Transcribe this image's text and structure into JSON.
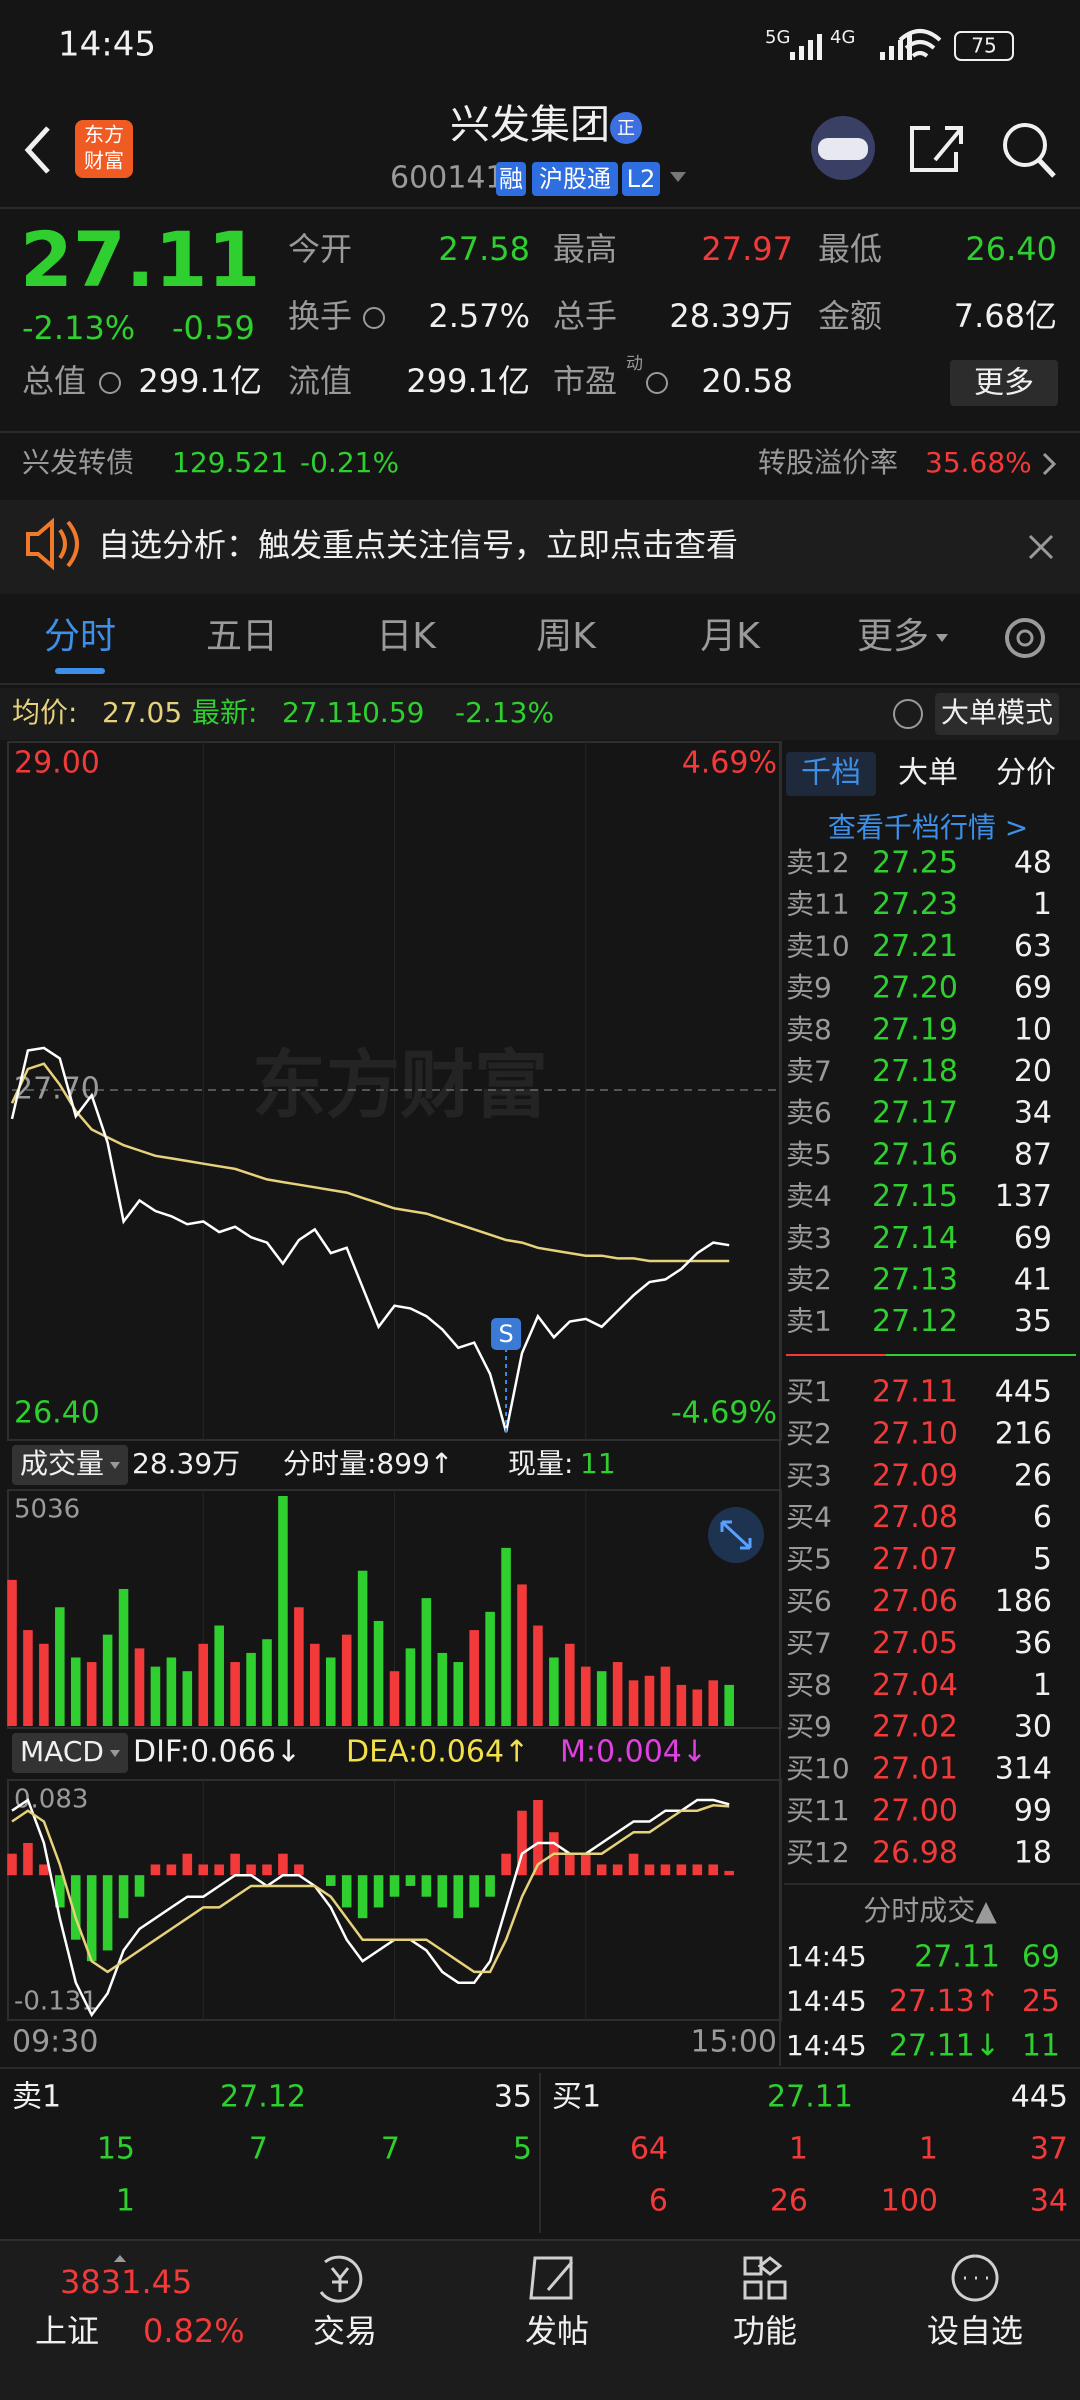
{
  "status_bar": {
    "time": "14:45",
    "net1": "5G",
    "net2": "4G",
    "battery": "75"
  },
  "header": {
    "logo": [
      "东方",
      "财富"
    ],
    "title": "兴发集团",
    "badge": "正",
    "code": "600141",
    "tags": [
      "融",
      "沪股通",
      "L2"
    ]
  },
  "quote": {
    "price": "27.11",
    "change_pct": "-2.13%",
    "change": "-0.59",
    "open_label": "今开",
    "open": "27.58",
    "high_label": "最高",
    "high": "27.97",
    "low_label": "最低",
    "low": "26.40",
    "turnover_label": "换手",
    "turnover": "2.57%",
    "volume_label": "总手",
    "volume": "28.39万",
    "amount_label": "金额",
    "amount": "7.68亿",
    "mcap_label": "总值",
    "mcap": "299.1亿",
    "float_label": "流值",
    "float": "299.1亿",
    "pe_label": "市盈",
    "pe_tag": "动",
    "pe": "20.58",
    "more": "更多"
  },
  "bond": {
    "name": "兴发转债",
    "price": "129.521",
    "change": "-0.21%",
    "premium_label": "转股溢价率",
    "premium": "35.68%"
  },
  "notice": "自选分析：触发重点关注信号，立即点击查看",
  "tabs": [
    "分时",
    "五日",
    "日K",
    "周K",
    "月K",
    "更多"
  ],
  "info_bar": {
    "avg": "27.05",
    "last": "27.11",
    "change": "-0.59",
    "change_pct": "-2.13%",
    "mode": "大单模式"
  },
  "watermark": "东方财富",
  "signal": "S",
  "volume_header": {
    "label": "成交量",
    "total": "28.39万",
    "minute": "分时量:899↑",
    "now_label": "现量:",
    "now": "11"
  },
  "macd_header": {
    "label": "MACD",
    "dif": "DIF:0.066↓",
    "dea": "DEA:0.064↑",
    "m": "M:0.004↓"
  },
  "chart_data": [
    {
      "type": "line",
      "ylim": [
        26.4,
        29.0
      ],
      "yticks": [
        {
          "value": 29.0,
          "label": "29.00"
        },
        {
          "value": 27.7,
          "label": "27.70"
        },
        {
          "value": 26.4,
          "label": "26.40"
        }
      ],
      "y2lim": [
        -4.69,
        4.69
      ],
      "y2ticks": [
        {
          "value": 4.69,
          "label": "4.69%"
        },
        {
          "value": -4.69,
          "label": "-4.69%"
        }
      ],
      "series": [
        {
          "name": "均价:",
          "color": "#e6d27a",
          "values": [
            27.65,
            27.78,
            27.8,
            27.72,
            27.62,
            27.55,
            27.52,
            27.49,
            27.47,
            27.45,
            27.44,
            27.43,
            27.42,
            27.41,
            27.4,
            27.38,
            27.36,
            27.35,
            27.34,
            27.33,
            27.32,
            27.31,
            27.29,
            27.27,
            27.25,
            27.24,
            27.23,
            27.21,
            27.19,
            27.17,
            27.15,
            27.13,
            27.12,
            27.1,
            27.09,
            27.08,
            27.07,
            27.07,
            27.06,
            27.06,
            27.05,
            27.05,
            27.05,
            27.05,
            27.05,
            27.05,
            null,
            null,
            null
          ]
        },
        {
          "name": "最新:",
          "color": "#ffffff",
          "values": [
            27.59,
            27.85,
            27.86,
            27.82,
            27.6,
            27.68,
            27.5,
            27.2,
            27.28,
            27.24,
            27.22,
            27.19,
            27.2,
            27.16,
            27.18,
            27.14,
            27.12,
            27.04,
            27.13,
            27.17,
            27.08,
            27.1,
            26.95,
            26.8,
            26.88,
            26.87,
            26.84,
            26.79,
            26.72,
            26.74,
            26.62,
            26.4,
            26.7,
            26.84,
            26.76,
            26.82,
            26.83,
            26.8,
            26.86,
            26.92,
            26.97,
            26.98,
            27.02,
            27.08,
            27.12,
            27.11,
            null,
            null,
            null
          ]
        }
      ]
    },
    {
      "type": "bar",
      "ylim": [
        0,
        5036
      ],
      "yticks": [
        5036
      ],
      "values": [
        3200,
        2100,
        1800,
        2600,
        1500,
        1400,
        2000,
        3000,
        1700,
        1300,
        1500,
        1200,
        1800,
        2200,
        1400,
        1600,
        1900,
        5036,
        2600,
        1800,
        1500,
        2000,
        3400,
        2300,
        1200,
        1700,
        2800,
        1600,
        1400,
        2100,
        2500,
        3900,
        3100,
        2200,
        1500,
        1800,
        1300,
        1200,
        1400,
        1000,
        1100,
        1300,
        900,
        800,
        1000,
        900,
        null,
        null,
        null
      ],
      "colors": [
        "#f23a3a",
        "#f23a3a",
        "#f23a3a",
        "#2fcf2f",
        "#2fcf2f",
        "#f23a3a",
        "#2fcf2f",
        "#2fcf2f",
        "#f23a3a",
        "#2fcf2f",
        "#2fcf2f",
        "#2fcf2f",
        "#f23a3a",
        "#2fcf2f",
        "#f23a3a",
        "#2fcf2f",
        "#2fcf2f",
        "#2fcf2f",
        "#f23a3a",
        "#f23a3a",
        "#2fcf2f",
        "#f23a3a",
        "#2fcf2f",
        "#2fcf2f",
        "#f23a3a",
        "#2fcf2f",
        "#2fcf2f",
        "#2fcf2f",
        "#2fcf2f",
        "#f23a3a",
        "#2fcf2f",
        "#2fcf2f",
        "#f23a3a",
        "#f23a3a",
        "#2fcf2f",
        "#f23a3a",
        "#f23a3a",
        "#2fcf2f",
        "#f23a3a",
        "#f23a3a",
        "#f23a3a",
        "#f23a3a",
        "#f23a3a",
        "#f23a3a",
        "#f23a3a",
        "#2fcf2f",
        null,
        null,
        null
      ]
    },
    {
      "type": "macd",
      "ylim": [
        -0.131,
        0.083
      ],
      "yticks": [
        0.083,
        -0.131
      ],
      "categories": [
        "09:30",
        null,
        null,
        null,
        null,
        null,
        null,
        null,
        null,
        null,
        null,
        null,
        null,
        null,
        null,
        null,
        null,
        null,
        null,
        null,
        null,
        null,
        null,
        null,
        null,
        null,
        null,
        null,
        null,
        null,
        null,
        null,
        null,
        null,
        null,
        null,
        null,
        null,
        null,
        null,
        null,
        null,
        null,
        null,
        null,
        null,
        null,
        null,
        "15:00"
      ],
      "up_color": "#f23a3a",
      "down_color": "#2fcf2f",
      "values": [
        0.02,
        0.03,
        0.01,
        -0.03,
        -0.06,
        -0.08,
        -0.07,
        -0.04,
        -0.02,
        0.01,
        0.01,
        0.02,
        0.01,
        0.01,
        0.02,
        0.01,
        0.01,
        0.02,
        0.01,
        0.0,
        -0.01,
        -0.03,
        -0.04,
        -0.03,
        -0.02,
        -0.01,
        -0.02,
        -0.03,
        -0.04,
        -0.03,
        -0.02,
        0.02,
        0.06,
        0.07,
        0.04,
        0.02,
        0.02,
        0.01,
        0.01,
        0.02,
        0.01,
        0.01,
        0.01,
        0.01,
        0.01,
        0.004,
        null,
        null,
        null
      ],
      "series": [
        {
          "color": "#ffffff",
          "values": [
            0.06,
            0.07,
            0.03,
            -0.04,
            -0.1,
            -0.13,
            -0.11,
            -0.07,
            -0.05,
            -0.04,
            -0.03,
            -0.02,
            -0.02,
            -0.01,
            0.0,
            0.0,
            -0.01,
            0.0,
            0.0,
            -0.01,
            -0.03,
            -0.06,
            -0.08,
            -0.07,
            -0.06,
            -0.06,
            -0.07,
            -0.09,
            -0.1,
            -0.1,
            -0.08,
            -0.03,
            0.02,
            0.03,
            0.03,
            0.02,
            0.02,
            0.03,
            0.04,
            0.05,
            0.05,
            0.06,
            0.06,
            0.07,
            0.07,
            0.066,
            null,
            null,
            null
          ]
        },
        {
          "color": "#e6d27a",
          "values": [
            0.05,
            0.06,
            0.05,
            0.01,
            -0.04,
            -0.08,
            -0.09,
            -0.08,
            -0.07,
            -0.06,
            -0.05,
            -0.04,
            -0.03,
            -0.03,
            -0.02,
            -0.01,
            -0.01,
            -0.01,
            -0.01,
            -0.01,
            -0.02,
            -0.04,
            -0.06,
            -0.06,
            -0.06,
            -0.06,
            -0.06,
            -0.07,
            -0.08,
            -0.09,
            -0.09,
            -0.06,
            -0.02,
            0.01,
            0.02,
            0.02,
            0.02,
            0.02,
            0.03,
            0.04,
            0.04,
            0.05,
            0.06,
            0.06,
            0.065,
            0.064,
            null,
            null,
            null
          ]
        }
      ]
    }
  ],
  "order_book": {
    "tabs": [
      "千档",
      "大单",
      "分价"
    ],
    "link": "查看千档行情 >",
    "asks": [
      [
        "卖12",
        "27.25",
        "48"
      ],
      [
        "卖11",
        "27.23",
        "1"
      ],
      [
        "卖10",
        "27.21",
        "63"
      ],
      [
        "卖9",
        "27.20",
        "69"
      ],
      [
        "卖8",
        "27.19",
        "10"
      ],
      [
        "卖7",
        "27.18",
        "20"
      ],
      [
        "卖6",
        "27.17",
        "34"
      ],
      [
        "卖5",
        "27.16",
        "87"
      ],
      [
        "卖4",
        "27.15",
        "137"
      ],
      [
        "卖3",
        "27.14",
        "69"
      ],
      [
        "卖2",
        "27.13",
        "41"
      ],
      [
        "卖1",
        "27.12",
        "35"
      ]
    ],
    "bids": [
      [
        "买1",
        "27.11",
        "445"
      ],
      [
        "买2",
        "27.10",
        "216"
      ],
      [
        "买3",
        "27.09",
        "26"
      ],
      [
        "买4",
        "27.08",
        "6"
      ],
      [
        "买5",
        "27.07",
        "5"
      ],
      [
        "买6",
        "27.06",
        "186"
      ],
      [
        "买7",
        "27.05",
        "36"
      ],
      [
        "买8",
        "27.04",
        "1"
      ],
      [
        "买9",
        "27.02",
        "30"
      ],
      [
        "买10",
        "27.01",
        "314"
      ],
      [
        "买11",
        "27.00",
        "99"
      ],
      [
        "买12",
        "26.98",
        "18"
      ]
    ]
  },
  "trades": {
    "title": "分时成交▲",
    "rows": [
      [
        "14:45",
        "27.11",
        "69"
      ],
      [
        "14:45",
        "27.13↑",
        "25"
      ],
      [
        "14:45",
        "27.11↓",
        "11"
      ]
    ]
  },
  "level1": {
    "ask_label": "卖1",
    "ask_price": "27.12",
    "ask_volume": "35",
    "bid_label": "买1",
    "bid_price": "27.11",
    "bid_volume": "445",
    "ask_queue": [
      [
        "15",
        "7",
        "7",
        "5"
      ],
      [
        "1"
      ]
    ],
    "bid_queue": [
      [
        "64",
        "1",
        "1",
        "37"
      ],
      [
        "6",
        "26",
        "100",
        "34"
      ]
    ]
  },
  "nav": {
    "index": "3831.45",
    "index_name": "上证",
    "index_change": "0.82%",
    "items": [
      "交易",
      "发帖",
      "功能",
      "设自选"
    ]
  }
}
